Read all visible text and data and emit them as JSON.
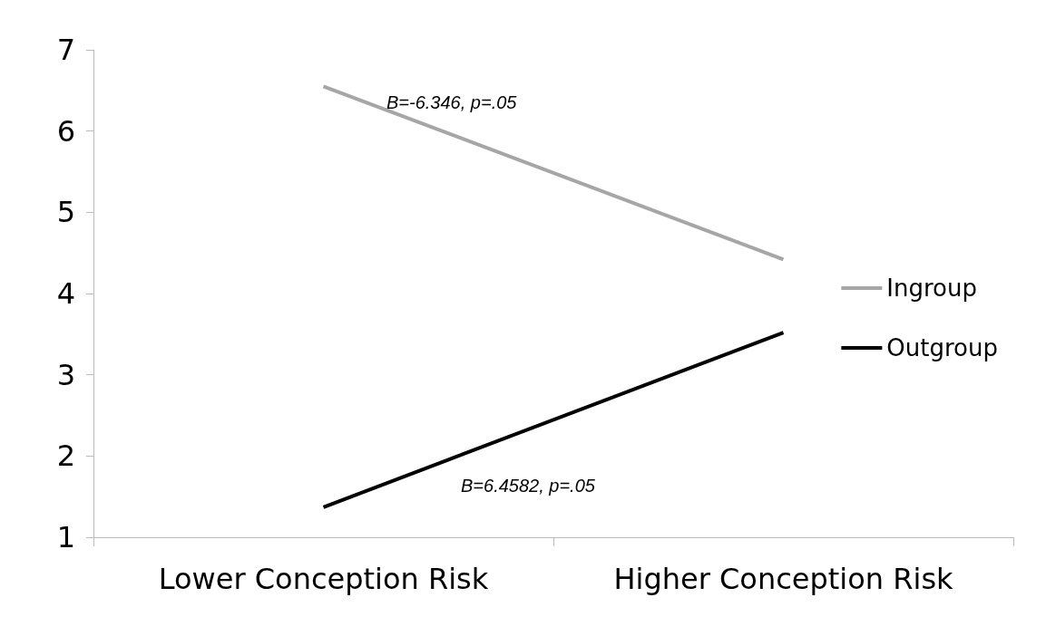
{
  "chart_data": {
    "type": "line",
    "categories": [
      "Lower Conception Risk",
      "Higher Conception Risk"
    ],
    "series": [
      {
        "name": "Ingroup",
        "color": "#a6a6a6",
        "values": [
          6.55,
          4.42
        ]
      },
      {
        "name": "Outgroup",
        "color": "#000000",
        "values": [
          1.37,
          3.52
        ]
      }
    ],
    "ylim": [
      1,
      7
    ],
    "yticks": [
      1,
      2,
      3,
      4,
      5,
      6,
      7
    ],
    "grid": false,
    "legend": "right",
    "marker": "none",
    "line_style": "solid",
    "annotations": [
      "B=-6.346, p=.05",
      "B=6.4582, p=.05"
    ]
  }
}
